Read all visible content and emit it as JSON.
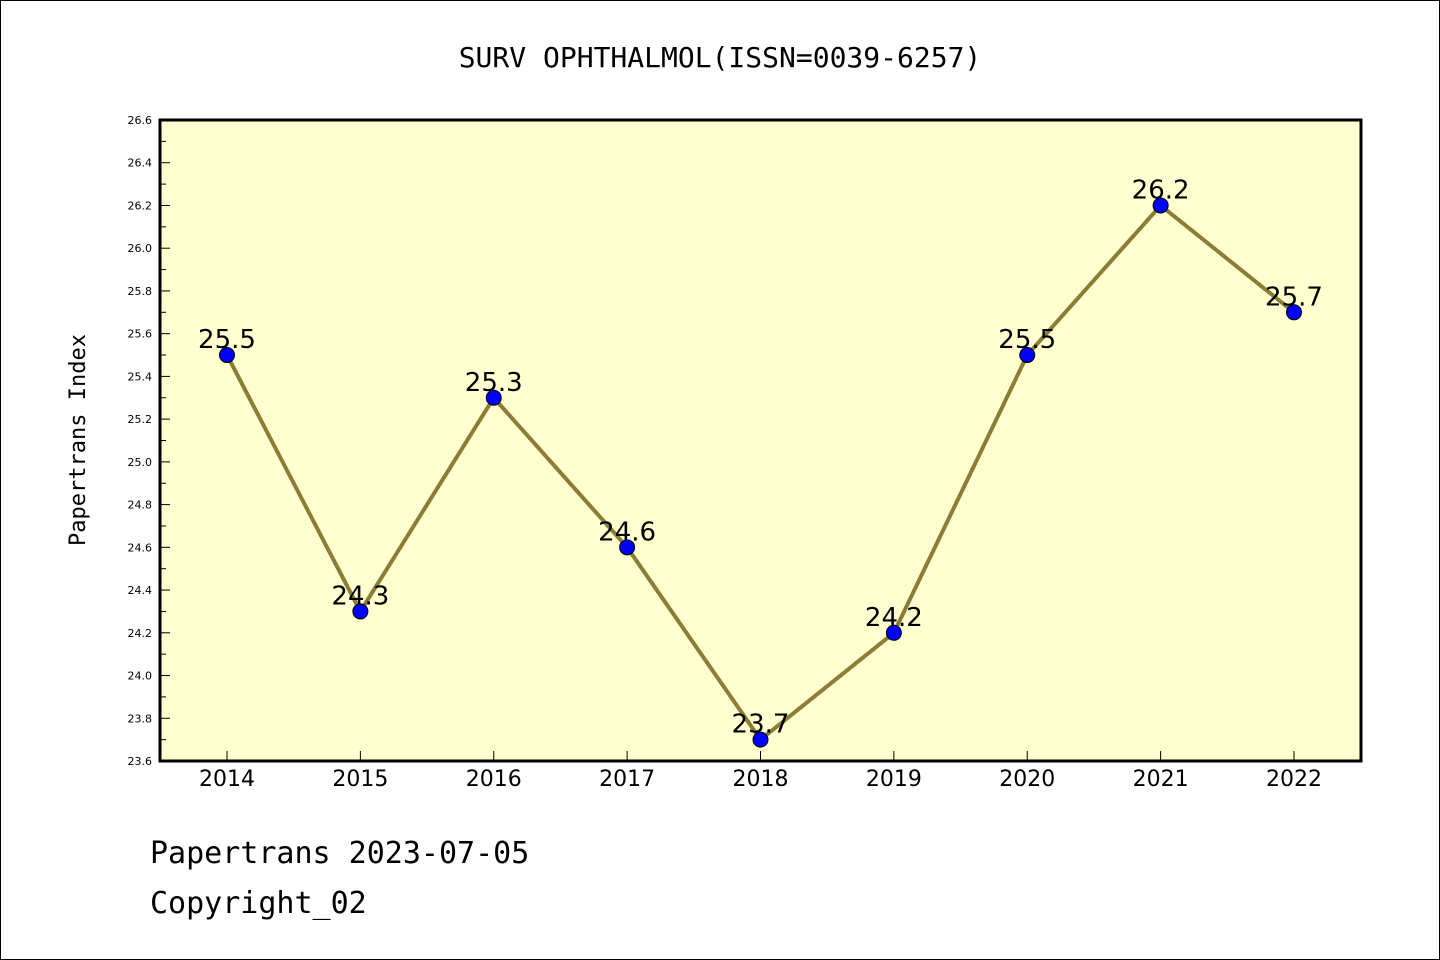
{
  "chart_data": {
    "type": "line",
    "title": "SURV OPHTHALMOL(ISSN=0039-6257)",
    "xlabel": "",
    "ylabel": "Papertrans Index",
    "categories": [
      "2014",
      "2015",
      "2016",
      "2017",
      "2018",
      "2019",
      "2020",
      "2021",
      "2022"
    ],
    "values": [
      25.5,
      24.3,
      25.3,
      24.6,
      23.7,
      24.2,
      25.5,
      26.2,
      25.7
    ],
    "data_labels": [
      "25.5",
      "24.3",
      "25.3",
      "24.6",
      "23.7",
      "24.2",
      "25.5",
      "26.2",
      "25.7"
    ],
    "ylim": [
      23.6,
      26.6
    ],
    "yticks": [
      "23.6",
      "23.8",
      "24.0",
      "24.2",
      "24.4",
      "24.6",
      "24.8",
      "25.0",
      "25.2",
      "25.4",
      "25.6",
      "25.8",
      "26.0",
      "26.2",
      "26.4",
      "26.6"
    ],
    "grid": false,
    "legend": "none",
    "colors": {
      "line": "#8B7D35",
      "marker": "#0000FF",
      "plot_background": "#FFFFD0"
    }
  },
  "footer": {
    "line1": "Papertrans 2023-07-05",
    "line2": "Copyright_02"
  }
}
